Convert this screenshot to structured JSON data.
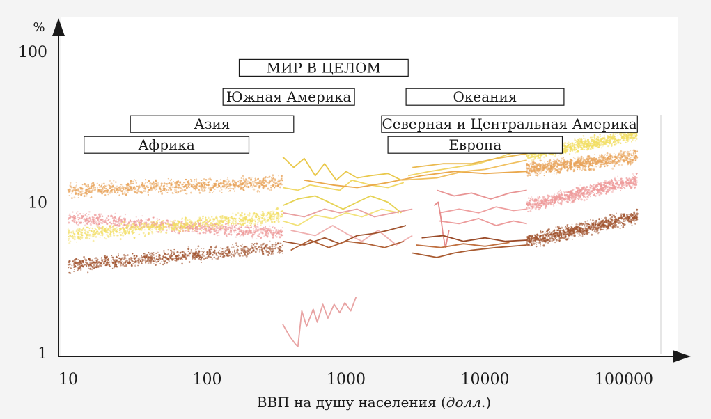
{
  "chart_data": {
    "type": "scatter",
    "y_unit": "%",
    "xlabel": "ВВП на душу населения",
    "xlabel_unit": "долл.",
    "xscale": "log",
    "yscale": "log",
    "xlim": [
      8,
      200000
    ],
    "ylim": [
      1,
      100
    ],
    "x_ticks": [
      {
        "value": 10,
        "label": "10"
      },
      {
        "value": 100,
        "label": "100"
      },
      {
        "value": 1000,
        "label": "1000"
      },
      {
        "value": 10000,
        "label": "10000"
      },
      {
        "value": 100000,
        "label": "100000"
      }
    ],
    "y_ticks": [
      {
        "value": 1,
        "label": "1"
      },
      {
        "value": 10,
        "label": "10"
      },
      {
        "value": 100,
        "label": "100"
      }
    ],
    "grid": false,
    "region_labels": [
      {
        "label": "МИР В ЦЕЛОМ",
        "x_from": 170,
        "x_to": 2800,
        "y": 78
      },
      {
        "label": "Южная Америка",
        "x_from": 130,
        "x_to": 1150,
        "y": 50
      },
      {
        "label": "Азия",
        "x_from": 28,
        "x_to": 420,
        "y": 33
      },
      {
        "label": "Африка",
        "x_from": 13,
        "x_to": 200,
        "y": 24
      },
      {
        "label": "Океания",
        "x_from": 2700,
        "x_to": 37000,
        "y": 50
      },
      {
        "label": "Северная и Центральная Америка",
        "x_from": 1800,
        "x_to": 125000,
        "y": 33
      },
      {
        "label": "Европа",
        "x_from": 2000,
        "x_to": 36000,
        "y": 24
      }
    ],
    "bands": [
      {
        "color": "#e8a35a",
        "x_from": 10,
        "x_to": 350,
        "y_from": 12,
        "y_to": 13.5
      },
      {
        "color": "#ee9a9a",
        "x_from": 10,
        "x_to": 350,
        "y_from": 7.8,
        "y_to": 6.2
      },
      {
        "color": "#f2de63",
        "x_from": 10,
        "x_to": 350,
        "y_from": 6,
        "y_to": 8.2
      },
      {
        "color": "#a0522d",
        "x_from": 10,
        "x_to": 350,
        "y_from": 3.8,
        "y_to": 5.0
      },
      {
        "color": "#f2de63",
        "x_from": 20000,
        "x_to": 125000,
        "y_from": 20.5,
        "y_to": 28
      },
      {
        "color": "#e8a35a",
        "x_from": 20000,
        "x_to": 125000,
        "y_from": 16.5,
        "y_to": 20
      },
      {
        "color": "#ee9a9a",
        "x_from": 20000,
        "x_to": 125000,
        "y_from": 9.5,
        "y_to": 14
      },
      {
        "color": "#a0522d",
        "x_from": 20000,
        "x_to": 125000,
        "y_from": 5.5,
        "y_to": 8
      }
    ],
    "series": [
      {
        "color": "#e9c84a",
        "points": [
          [
            350,
            20
          ],
          [
            420,
            17
          ],
          [
            500,
            19.5
          ],
          [
            600,
            15
          ],
          [
            700,
            18
          ],
          [
            850,
            14
          ],
          [
            1000,
            16
          ],
          [
            1200,
            14.5
          ],
          [
            1500,
            15
          ],
          [
            2000,
            15.5
          ],
          [
            2500,
            14
          ]
        ]
      },
      {
        "color": "#f0d866",
        "points": [
          [
            350,
            12.5
          ],
          [
            450,
            12
          ],
          [
            550,
            13
          ],
          [
            700,
            12.5
          ],
          [
            900,
            12
          ],
          [
            1100,
            14
          ],
          [
            1500,
            13
          ],
          [
            2000,
            12.5
          ],
          [
            2600,
            13.5
          ]
        ]
      },
      {
        "color": "#e6d355",
        "points": [
          [
            350,
            9.5
          ],
          [
            450,
            10.5
          ],
          [
            600,
            11
          ],
          [
            750,
            10
          ],
          [
            950,
            9
          ],
          [
            1200,
            10
          ],
          [
            1500,
            11
          ],
          [
            2000,
            10
          ],
          [
            2500,
            8.5
          ]
        ]
      },
      {
        "color": "#f2e27a",
        "points": [
          [
            350,
            7.5
          ],
          [
            450,
            7
          ],
          [
            600,
            8.2
          ],
          [
            800,
            7.8
          ],
          [
            1000,
            8.5
          ],
          [
            1300,
            8
          ],
          [
            1800,
            9
          ],
          [
            2400,
            8.5
          ]
        ]
      },
      {
        "color": "#eaa84c",
        "points": [
          [
            500,
            14
          ],
          [
            800,
            13
          ],
          [
            1200,
            12.5
          ],
          [
            2000,
            13.5
          ],
          [
            3500,
            15
          ],
          [
            6000,
            16
          ],
          [
            10000,
            15.5
          ],
          [
            20000,
            16
          ]
        ]
      },
      {
        "color": "#f0d466",
        "points": [
          [
            2800,
            15
          ],
          [
            4000,
            16
          ],
          [
            6000,
            17
          ],
          [
            9000,
            18
          ],
          [
            13000,
            20
          ],
          [
            20000,
            23
          ]
        ]
      },
      {
        "color": "#eab94e",
        "points": [
          [
            3000,
            17
          ],
          [
            5000,
            18
          ],
          [
            8000,
            18
          ],
          [
            12000,
            19.5
          ],
          [
            20000,
            21
          ]
        ]
      },
      {
        "color": "#f0c060",
        "points": [
          [
            2500,
            14
          ],
          [
            4500,
            14.5
          ],
          [
            7000,
            16
          ],
          [
            10000,
            16.5
          ],
          [
            15000,
            18
          ],
          [
            20000,
            19
          ]
        ]
      },
      {
        "color": "#e9a0a0",
        "points": [
          [
            350,
            8.5
          ],
          [
            500,
            8
          ],
          [
            700,
            9
          ],
          [
            900,
            8.5
          ],
          [
            1200,
            9
          ],
          [
            1600,
            8
          ],
          [
            2200,
            8.5
          ],
          [
            3000,
            9
          ]
        ]
      },
      {
        "color": "#efb0b0",
        "points": [
          [
            400,
            6.5
          ],
          [
            600,
            6
          ],
          [
            800,
            7
          ],
          [
            1000,
            6.2
          ],
          [
            1300,
            5.5
          ],
          [
            1700,
            6.5
          ],
          [
            2300,
            5.2
          ],
          [
            3000,
            6
          ]
        ]
      },
      {
        "color": "#e89494",
        "points": [
          [
            4500,
            12
          ],
          [
            6000,
            11
          ],
          [
            8000,
            11.5
          ],
          [
            11000,
            10.5
          ],
          [
            15000,
            11.5
          ],
          [
            20000,
            12
          ]
        ]
      },
      {
        "color": "#ee9f9f",
        "points": [
          [
            4700,
            8.5
          ],
          [
            6500,
            9
          ],
          [
            9000,
            8.5
          ],
          [
            12000,
            9.3
          ],
          [
            16000,
            8.8
          ],
          [
            20000,
            9
          ]
        ]
      },
      {
        "color": "#ec9b9b",
        "points": [
          [
            4700,
            7.5
          ],
          [
            6500,
            7.2
          ],
          [
            9000,
            7.8
          ],
          [
            12000,
            7
          ],
          [
            16000,
            7.5
          ],
          [
            20000,
            7.2
          ]
        ]
      },
      {
        "color": "#e58a8a",
        "points": [
          [
            4300,
            9.5
          ],
          [
            4600,
            10
          ],
          [
            4800,
            8
          ],
          [
            5000,
            6
          ],
          [
            5200,
            5
          ],
          [
            5500,
            6.5
          ]
        ]
      },
      {
        "color": "#a0522d",
        "points": [
          [
            350,
            5.5
          ],
          [
            500,
            5.2
          ],
          [
            700,
            5.8
          ],
          [
            900,
            5.3
          ],
          [
            1200,
            6
          ],
          [
            1600,
            6.2
          ],
          [
            2000,
            6.5
          ],
          [
            2700,
            7
          ]
        ]
      },
      {
        "color": "#b06238",
        "points": [
          [
            400,
            4.8
          ],
          [
            550,
            5.6
          ],
          [
            750,
            5
          ],
          [
            1000,
            5.5
          ],
          [
            1400,
            5.3
          ],
          [
            1900,
            5
          ],
          [
            2600,
            5.5
          ]
        ]
      },
      {
        "color": "#9a4a28",
        "points": [
          [
            3500,
            5.8
          ],
          [
            5000,
            6
          ],
          [
            7000,
            5.5
          ],
          [
            10000,
            5.8
          ],
          [
            14000,
            5.5
          ],
          [
            20000,
            5.6
          ]
        ]
      },
      {
        "color": "#a85a30",
        "points": [
          [
            3000,
            4.6
          ],
          [
            4500,
            4.3
          ],
          [
            6000,
            4.6
          ],
          [
            8000,
            4.8
          ],
          [
            12000,
            5
          ],
          [
            20000,
            5.2
          ]
        ]
      },
      {
        "color": "#c07040",
        "points": [
          [
            3200,
            5.2
          ],
          [
            4800,
            5.0
          ],
          [
            7000,
            5.3
          ],
          [
            10000,
            5.1
          ],
          [
            15000,
            5.4
          ]
        ]
      },
      {
        "color": "#e8a3a3",
        "points": [
          [
            350,
            1.55
          ],
          [
            390,
            1.3
          ],
          [
            430,
            1.15
          ],
          [
            450,
            1.1
          ],
          [
            480,
            1.9
          ],
          [
            520,
            1.5
          ],
          [
            580,
            1.95
          ],
          [
            620,
            1.6
          ],
          [
            680,
            2.1
          ],
          [
            740,
            1.7
          ],
          [
            820,
            2.1
          ],
          [
            900,
            1.85
          ],
          [
            980,
            2.15
          ],
          [
            1080,
            1.9
          ],
          [
            1180,
            2.35
          ]
        ]
      }
    ]
  }
}
